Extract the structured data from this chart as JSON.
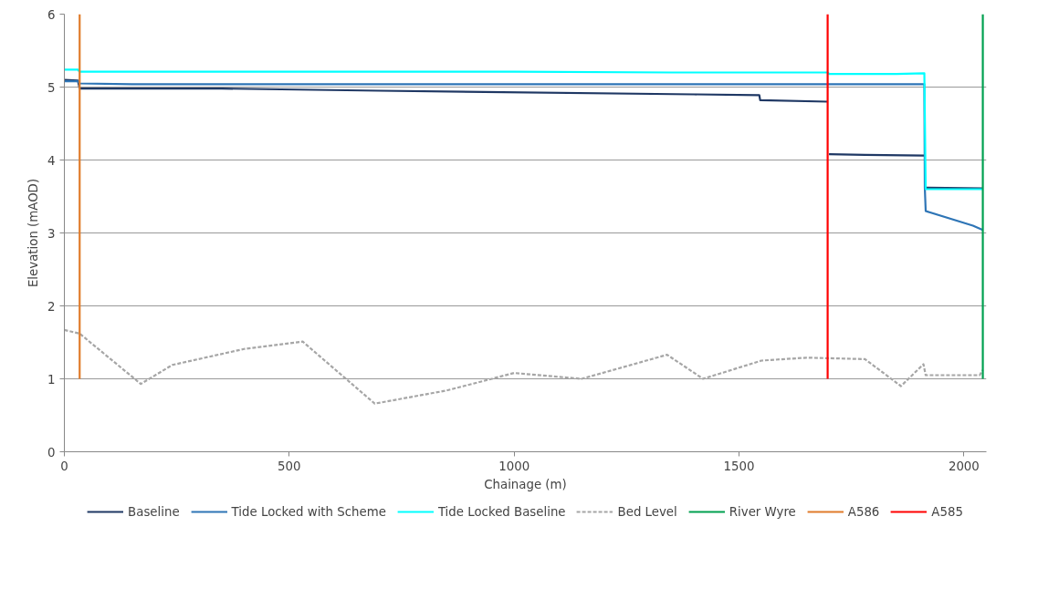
{
  "chart_data": {
    "type": "line",
    "xlabel": "Chainage (m)",
    "ylabel": "Elevation (mAOD)",
    "xlim": [
      0,
      2050
    ],
    "xticks": [
      0,
      500,
      1000,
      1500,
      2000
    ],
    "ylim": [
      0,
      6
    ],
    "yticks": [
      0,
      1,
      2,
      3,
      4,
      5,
      6
    ],
    "grid": "y",
    "legend": "bottom",
    "marker": "none",
    "line_style": "solid",
    "series": [
      {
        "name": "Baseline",
        "color": "#1f3864",
        "x": [
          0,
          30,
          34,
          350,
          700,
          1400,
          1545,
          1547,
          1697,
          1698,
          1700,
          1780,
          1912,
          1913,
          1915,
          2042
        ],
        "values": [
          5.1,
          5.09,
          4.98,
          4.98,
          4.95,
          4.9,
          4.89,
          4.82,
          4.8,
          null,
          4.08,
          4.07,
          4.06,
          null,
          3.62,
          3.61
        ]
      },
      {
        "name": "Tide Locked with Scheme",
        "color": "#2e75b6",
        "x": [
          0,
          30,
          34,
          150,
          1912,
          1913,
          1915,
          2020,
          2042
        ],
        "values": [
          5.08,
          5.08,
          5.05,
          5.04,
          5.04,
          3.62,
          3.3,
          3.1,
          3.04
        ]
      },
      {
        "name": "Tide Locked Baseline",
        "color": "#00ffff",
        "x": [
          0,
          30,
          34,
          1000,
          1350,
          1697,
          1700,
          1850,
          1912,
          1915,
          2042
        ],
        "values": [
          5.24,
          5.24,
          5.21,
          5.21,
          5.2,
          5.2,
          5.18,
          5.18,
          5.19,
          3.6,
          3.6
        ]
      },
      {
        "name": "Bed Level",
        "color": "#a6a6a6",
        "line_style": "dashed",
        "x": [
          0,
          34,
          170,
          240,
          400,
          530,
          690,
          850,
          1000,
          1150,
          1340,
          1420,
          1550,
          1650,
          1780,
          1860,
          1910,
          1915,
          2035,
          2042
        ],
        "values": [
          1.67,
          1.62,
          0.93,
          1.19,
          1.41,
          1.51,
          0.66,
          0.84,
          1.08,
          1.0,
          1.33,
          1.0,
          1.25,
          1.29,
          1.27,
          0.9,
          1.2,
          1.05,
          1.05,
          1.12
        ]
      },
      {
        "name": "River Wyre",
        "color": "#00a050",
        "x": [
          2042,
          2042
        ],
        "values": [
          1,
          6
        ]
      },
      {
        "name": "A586",
        "color": "#e07b2a",
        "x": [
          34,
          34
        ],
        "values": [
          1,
          6
        ]
      },
      {
        "name": "A585",
        "color": "#ff0000",
        "x": [
          1697,
          1697
        ],
        "values": [
          1,
          6
        ]
      }
    ]
  }
}
